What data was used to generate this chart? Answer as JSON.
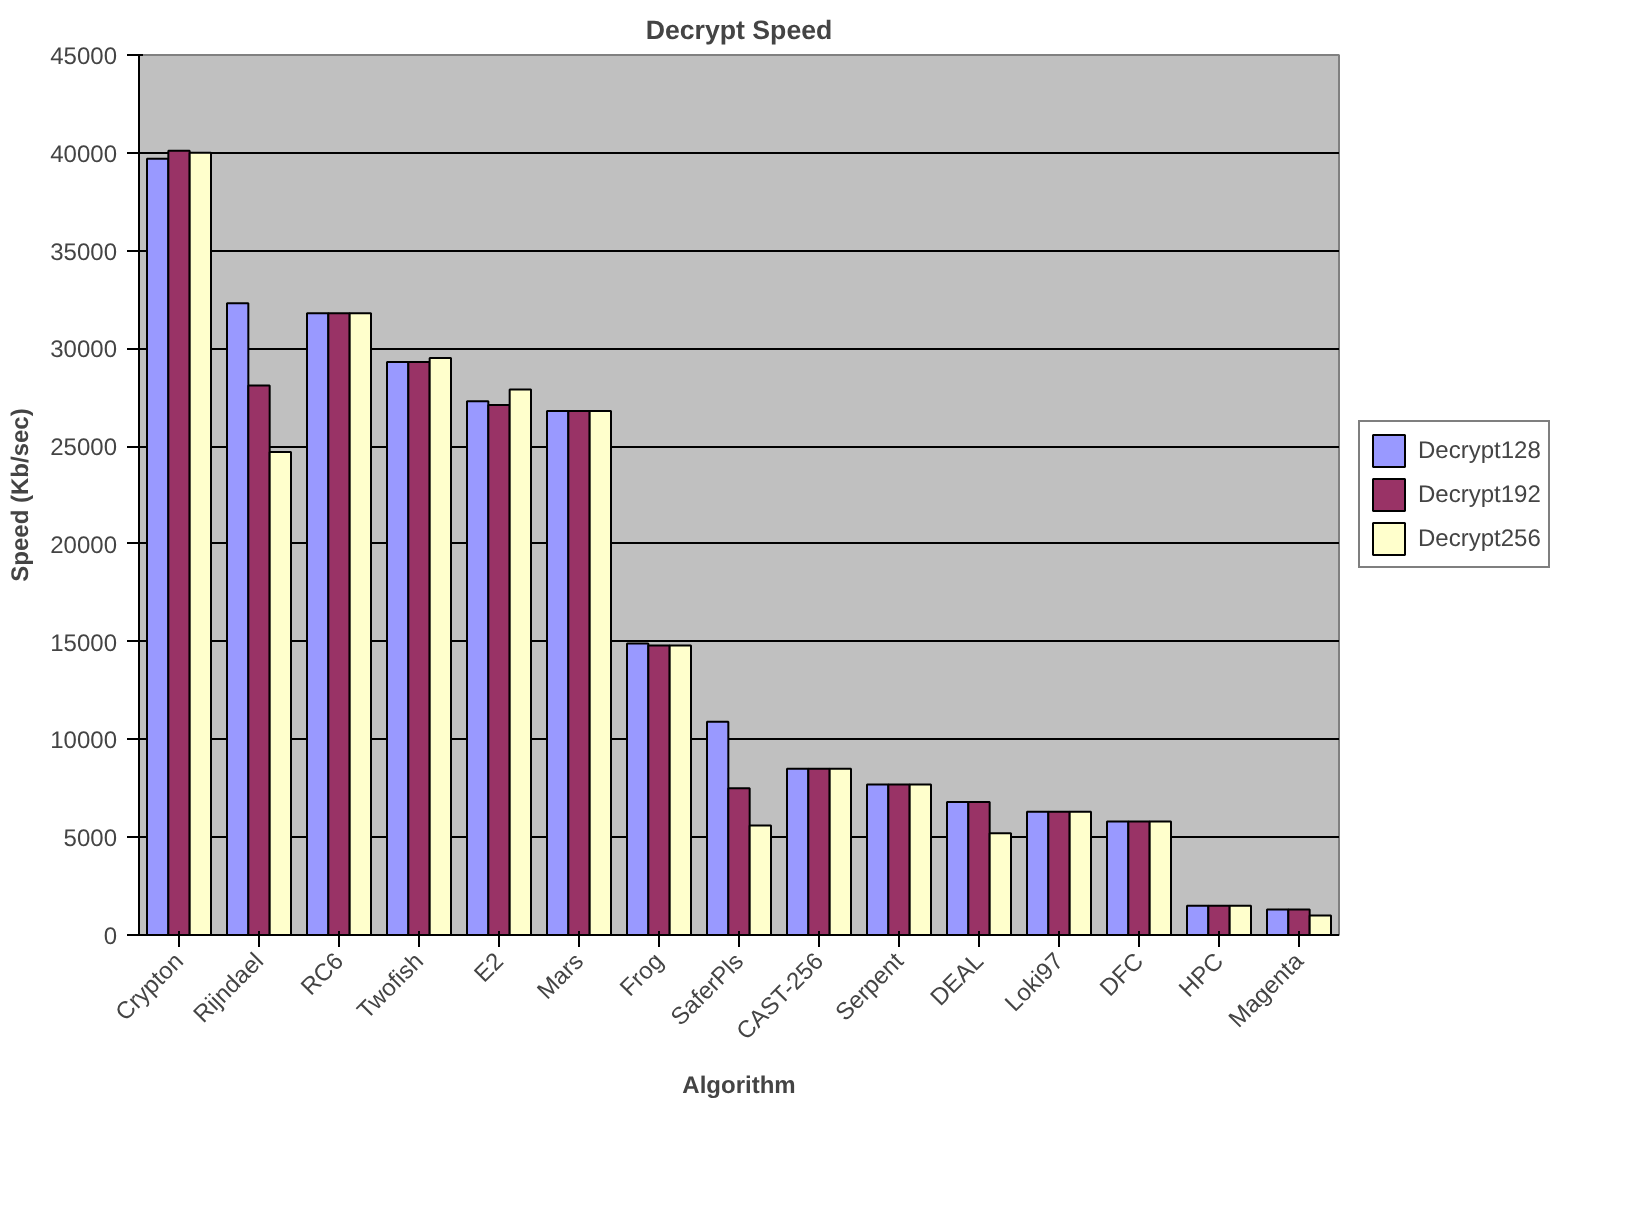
{
  "chart_data": {
    "type": "bar",
    "title": "Decrypt Speed",
    "xlabel": "Algorithm",
    "ylabel": "Speed (Kb/sec)",
    "categories": [
      "Crypton",
      "Rijndael",
      "RC6",
      "Twofish",
      "E2",
      "Mars",
      "Frog",
      "SaferPls",
      "CAST-256",
      "Serpent",
      "DEAL",
      "Loki97",
      "DFC",
      "HPC",
      "Magenta"
    ],
    "series": [
      {
        "name": "Decrypt128",
        "color": "#9999ff",
        "values": [
          39700,
          32300,
          31800,
          29300,
          27300,
          26800,
          14900,
          10900,
          8500,
          7700,
          6800,
          6300,
          5800,
          1500,
          1300
        ]
      },
      {
        "name": "Decrypt192",
        "color": "#993366",
        "values": [
          40100,
          28100,
          31800,
          29300,
          27100,
          26800,
          14800,
          7500,
          8500,
          7700,
          6800,
          6300,
          5800,
          1500,
          1300
        ]
      },
      {
        "name": "Decrypt256",
        "color": "#ffffcc",
        "values": [
          40000,
          24700,
          31800,
          29500,
          27900,
          26800,
          14800,
          5600,
          8500,
          7700,
          5200,
          6300,
          5800,
          1500,
          1000
        ]
      }
    ],
    "ylim": [
      0,
      45000
    ],
    "yticks": [
      0,
      5000,
      10000,
      15000,
      20000,
      25000,
      30000,
      35000,
      40000,
      45000
    ],
    "grid": "y",
    "legend": "right"
  }
}
